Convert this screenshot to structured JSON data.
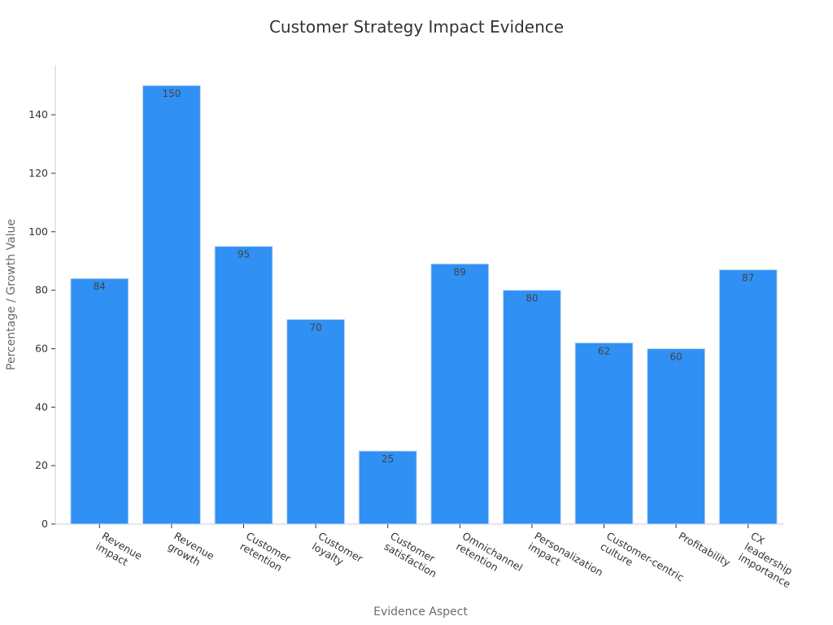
{
  "chart_data": {
    "type": "bar",
    "title": "Customer Strategy Impact Evidence",
    "xlabel": "Evidence Aspect",
    "ylabel": "Percentage / Growth Value",
    "categories": [
      [
        "Revenue",
        "impact"
      ],
      [
        "Revenue",
        "growth"
      ],
      [
        "Customer",
        "retention"
      ],
      [
        "Customer",
        "loyalty"
      ],
      [
        "Customer",
        "satisfaction"
      ],
      [
        "Omnichannel",
        "retention"
      ],
      [
        "Personalization",
        "impact"
      ],
      [
        "Customer-centric",
        "culture"
      ],
      [
        "Profitability"
      ],
      [
        "CX",
        "leadership",
        "importance"
      ]
    ],
    "values": [
      84,
      150,
      95,
      70,
      25,
      89,
      80,
      62,
      60,
      87
    ],
    "ylim": [
      0,
      157
    ],
    "yticks": [
      0,
      20,
      40,
      60,
      80,
      100,
      120,
      140
    ],
    "grid": false,
    "legend": "none",
    "bar_color": "#3090f4",
    "bar_edge_color": "#c8dcf5"
  }
}
